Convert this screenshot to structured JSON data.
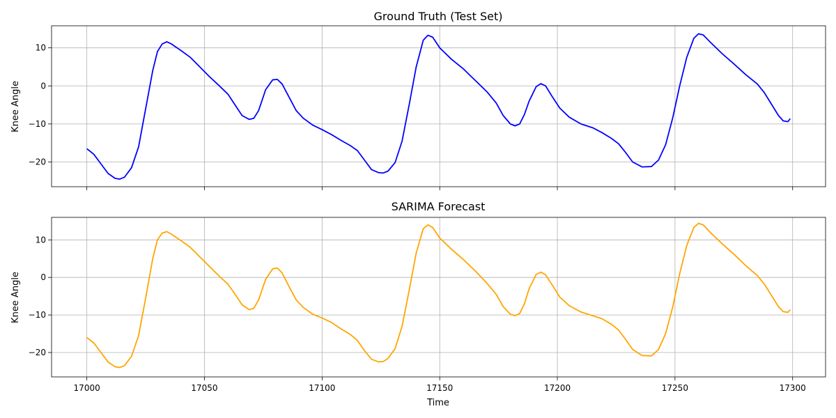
{
  "chart_data": [
    {
      "type": "line",
      "title": "Ground Truth (Test Set)",
      "xlabel": "",
      "ylabel": "Knee Angle",
      "xlim": [
        16985,
        17314
      ],
      "ylim": [
        -26.5,
        15.8
      ],
      "xticks": [
        17000,
        17050,
        17100,
        17150,
        17200,
        17250,
        17300
      ],
      "yticks": [
        -20,
        -10,
        0,
        10
      ],
      "grid": true,
      "series": [
        {
          "color": "#0000ff",
          "x": [
            17000,
            17003,
            17006,
            17009,
            17012,
            17014,
            17016,
            17019,
            17022,
            17025,
            17028,
            17030,
            17032,
            17034,
            17036,
            17040,
            17044,
            17048,
            17052,
            17056,
            17060,
            17063,
            17066,
            17069,
            17071,
            17073,
            17076,
            17079,
            17081,
            17083,
            17086,
            17089,
            17092,
            17096,
            17100,
            17104,
            17108,
            17112,
            17115,
            17118,
            17121,
            17124,
            17126,
            17128,
            17131,
            17134,
            17137,
            17140,
            17143,
            17145,
            17147,
            17150,
            17155,
            17160,
            17165,
            17170,
            17174,
            17177,
            17180,
            17182,
            17184,
            17186,
            17188,
            17191,
            17193,
            17195,
            17198,
            17201,
            17205,
            17210,
            17215,
            17219,
            17223,
            17226,
            17229,
            17232,
            17236,
            17240,
            17243,
            17246,
            17249,
            17252,
            17255,
            17258,
            17260,
            17262,
            17265,
            17270,
            17275,
            17280,
            17285,
            17288,
            17291,
            17294,
            17296,
            17298,
            17299
          ],
          "y": [
            -16.5,
            -18,
            -20.5,
            -23,
            -24.3,
            -24.5,
            -24,
            -21.5,
            -16,
            -6,
            4,
            9,
            11,
            11.6,
            11,
            9.3,
            7.5,
            5,
            2.5,
            0.2,
            -2.2,
            -5,
            -7.8,
            -8.8,
            -8.5,
            -6.5,
            -1,
            1.6,
            1.7,
            0.5,
            -3,
            -6.5,
            -8.5,
            -10.3,
            -11.5,
            -12.8,
            -14.3,
            -15.7,
            -17,
            -19.5,
            -22,
            -22.8,
            -22.9,
            -22.4,
            -20.2,
            -14.5,
            -5,
            5,
            12,
            13.3,
            12.8,
            10,
            7,
            4.5,
            1.5,
            -1.5,
            -4.5,
            -7.8,
            -10,
            -10.5,
            -10,
            -7.5,
            -4,
            -0.2,
            0.6,
            0,
            -3,
            -5.8,
            -8.2,
            -10,
            -11,
            -12.3,
            -13.8,
            -15.2,
            -17.5,
            -20,
            -21.3,
            -21.2,
            -19.5,
            -15.5,
            -8.5,
            0,
            7.5,
            12.5,
            13.7,
            13.4,
            11.5,
            8.5,
            5.8,
            3,
            0.5,
            -1.8,
            -4.8,
            -7.8,
            -9.2,
            -9.4,
            -8.6
          ]
        }
      ]
    },
    {
      "type": "line",
      "title": "SARIMA Forecast",
      "xlabel": "Time",
      "ylabel": "Knee Angle",
      "xlim": [
        16985,
        17314
      ],
      "ylim": [
        -26.5,
        16.0
      ],
      "xticks": [
        17000,
        17050,
        17100,
        17150,
        17200,
        17250,
        17300
      ],
      "yticks": [
        -20,
        -10,
        0,
        10
      ],
      "grid": true,
      "series": [
        {
          "color": "#ffa500",
          "x": [
            17000,
            17003,
            17006,
            17009,
            17012,
            17014,
            17016,
            17019,
            17022,
            17025,
            17028,
            17030,
            17032,
            17034,
            17036,
            17040,
            17044,
            17048,
            17052,
            17056,
            17060,
            17063,
            17066,
            17069,
            17071,
            17073,
            17076,
            17079,
            17081,
            17083,
            17086,
            17089,
            17092,
            17096,
            17100,
            17104,
            17108,
            17112,
            17115,
            17118,
            17121,
            17124,
            17126,
            17128,
            17131,
            17134,
            17137,
            17140,
            17143,
            17145,
            17147,
            17150,
            17155,
            17160,
            17165,
            17170,
            17174,
            17177,
            17180,
            17182,
            17184,
            17186,
            17188,
            17191,
            17193,
            17195,
            17198,
            17201,
            17205,
            17210,
            17215,
            17219,
            17223,
            17226,
            17229,
            17232,
            17236,
            17240,
            17243,
            17246,
            17249,
            17252,
            17255,
            17258,
            17260,
            17262,
            17265,
            17270,
            17275,
            17280,
            17285,
            17288,
            17291,
            17294,
            17296,
            17298,
            17299
          ],
          "y": [
            -16,
            -17.5,
            -20,
            -22.5,
            -23.8,
            -24,
            -23.5,
            -21,
            -15.5,
            -5.5,
            5,
            10,
            11.8,
            12.2,
            11.5,
            9.8,
            8,
            5.5,
            3,
            0.5,
            -1.8,
            -4.5,
            -7.3,
            -8.6,
            -8.2,
            -6,
            -0.5,
            2.3,
            2.5,
            1.2,
            -2.5,
            -6,
            -8,
            -9.8,
            -10.8,
            -12,
            -13.7,
            -15.2,
            -16.8,
            -19.5,
            -21.8,
            -22.5,
            -22.4,
            -21.6,
            -19,
            -13,
            -3.5,
            6.5,
            13,
            14,
            13.3,
            10.5,
            7.5,
            4.8,
            1.8,
            -1.5,
            -4.5,
            -7.8,
            -9.8,
            -10.2,
            -9.6,
            -7,
            -3,
            0.8,
            1.4,
            0.7,
            -2.2,
            -5.2,
            -7.5,
            -9.2,
            -10.2,
            -11,
            -12.5,
            -14,
            -16.5,
            -19.2,
            -20.8,
            -20.9,
            -19.2,
            -15,
            -8,
            1,
            8.5,
            13.3,
            14.4,
            14,
            12,
            9,
            6.2,
            3.2,
            0.5,
            -1.8,
            -4.8,
            -7.8,
            -9.1,
            -9.3,
            -8.6
          ]
        }
      ]
    }
  ]
}
